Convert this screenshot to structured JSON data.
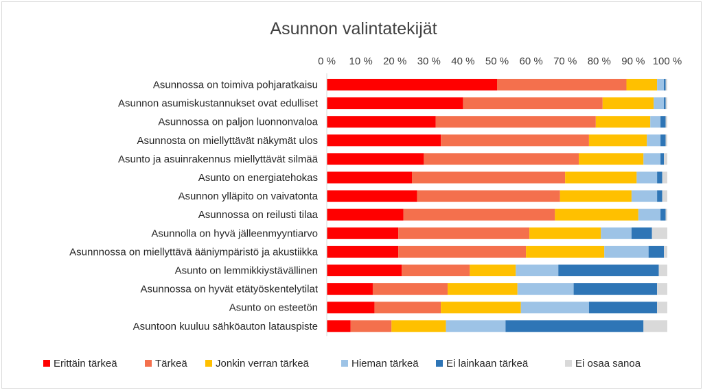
{
  "chart_data": {
    "type": "bar",
    "orientation": "horizontal",
    "stacked": true,
    "title": "Asunnon valintatekijät",
    "xlim": [
      0,
      100
    ],
    "x_ticks": [
      "0 %",
      "10 %",
      "20 %",
      "30 %",
      "40 %",
      "50 %",
      "60 %",
      "70 %",
      "80 %",
      "90 %",
      "100 %"
    ],
    "x_axis_position": "top",
    "grid": false,
    "legend_position": "bottom",
    "categories": [
      "Asunnossa on toimiva pohjaratkaisu",
      "Asunnon asumiskustannukset ovat edulliset",
      "Asunnossa on paljon luonnonvaloa",
      "Asunnosta on miellyttävät näkymät ulos",
      "Asunto ja asuinrakennus miellyttävät silmää",
      "Asunto on energiatehokas",
      "Asunnon ylläpito on vaivatonta",
      "Asunnossa on reilusti tilaa",
      "Asunnolla on hyvä jälleenmyyntiarvo",
      "Asunnnossa on miellyttävä ääniympäristö ja akustiikka",
      "Asunto on lemmikkiystävällinen",
      "Asunnossa on hyvät etätyöskentelytilat",
      "Asunto on esteetön",
      "Asuntoon kuuluu sähköauton latauspiste"
    ],
    "series": [
      {
        "name": "Erittäin tärkeä",
        "color": "#ff0000",
        "values": [
          50,
          40,
          32,
          33.5,
          28.5,
          25,
          26.5,
          22.5,
          21,
          21,
          22,
          13.5,
          14,
          7
        ]
      },
      {
        "name": "Tärkeä",
        "color": "#f4704d",
        "values": [
          38,
          41,
          47,
          43.5,
          45.5,
          45,
          42,
          44.5,
          38.5,
          37.5,
          20,
          22,
          19.5,
          12
        ]
      },
      {
        "name": "Jonkin verran tärkeä",
        "color": "#ffc000",
        "values": [
          9,
          15,
          16,
          17,
          19,
          21,
          21,
          24.5,
          21,
          23,
          13.5,
          20.5,
          23.5,
          16
        ]
      },
      {
        "name": "Hieman tärkeä",
        "color": "#9dc3e6",
        "values": [
          2,
          3,
          3,
          4,
          5,
          6,
          7.5,
          6.5,
          9,
          13,
          12.5,
          16.5,
          20,
          17.5
        ]
      },
      {
        "name": "Ei lainkaan tärkeä",
        "color": "#2e75b6",
        "values": [
          0.5,
          0.5,
          1.5,
          1.5,
          1,
          1.5,
          1.5,
          1.5,
          6,
          4.5,
          29.5,
          24.5,
          20,
          40.5
        ]
      },
      {
        "name": "Ei osaa sanoa",
        "color": "#d9d9d9",
        "values": [
          0.5,
          0.5,
          0.5,
          0.5,
          1,
          1.5,
          1.5,
          0.5,
          4.5,
          1,
          2.5,
          3,
          3,
          7
        ]
      }
    ]
  }
}
